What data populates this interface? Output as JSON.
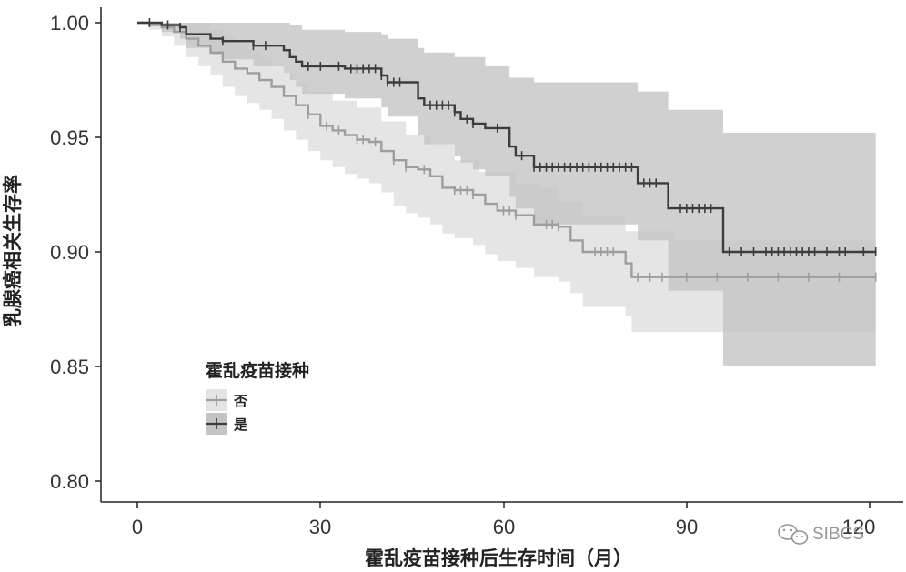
{
  "chart_data": {
    "type": "line",
    "xlabel": "霍乱疫苗接种后生存时间（月）",
    "ylabel": "乳腺癌相关生存率",
    "xlim": [
      0,
      120
    ],
    "ylim": [
      0.8,
      1.0
    ],
    "x_ticks": [
      "0",
      "30",
      "60",
      "90",
      "120"
    ],
    "y_ticks": [
      "1.00",
      "0.95",
      "0.90",
      "0.85",
      "0.80"
    ],
    "grid": false,
    "legend": {
      "title": "霍乱疫苗接种",
      "position": "left-middle"
    },
    "series": [
      {
        "name": "否",
        "color": "#9e9e9e",
        "band_color": "#e4e4e4",
        "steps": [
          [
            0,
            1.0
          ],
          [
            2,
            0.999
          ],
          [
            4,
            0.998
          ],
          [
            6,
            0.996
          ],
          [
            8,
            0.993
          ],
          [
            10,
            0.99
          ],
          [
            12,
            0.987
          ],
          [
            14,
            0.983
          ],
          [
            16,
            0.98
          ],
          [
            18,
            0.978
          ],
          [
            20,
            0.975
          ],
          [
            22,
            0.972
          ],
          [
            24,
            0.968
          ],
          [
            26,
            0.964
          ],
          [
            28,
            0.96
          ],
          [
            30,
            0.955
          ],
          [
            32,
            0.953
          ],
          [
            34,
            0.951
          ],
          [
            36,
            0.949
          ],
          [
            38,
            0.948
          ],
          [
            40,
            0.944
          ],
          [
            42,
            0.94
          ],
          [
            44,
            0.937
          ],
          [
            46,
            0.936
          ],
          [
            48,
            0.933
          ],
          [
            50,
            0.928
          ],
          [
            52,
            0.927
          ],
          [
            55,
            0.925
          ],
          [
            57,
            0.921
          ],
          [
            59,
            0.918
          ],
          [
            62,
            0.916
          ],
          [
            65,
            0.912
          ],
          [
            69,
            0.911
          ],
          [
            71,
            0.905
          ],
          [
            73,
            0.9
          ],
          [
            80,
            0.895
          ],
          [
            81,
            0.889
          ],
          [
            121,
            0.889
          ]
        ],
        "censor_x": [
          28,
          31,
          33,
          36,
          37,
          39,
          42,
          44,
          47,
          52,
          53,
          54,
          55,
          60,
          61,
          62,
          67,
          68,
          69,
          75,
          76,
          77,
          78,
          82,
          84,
          86,
          90,
          95,
          100,
          105,
          110,
          115,
          121
        ],
        "ci_upper": [
          [
            0,
            1.0
          ],
          [
            8,
            1.0
          ],
          [
            12,
            0.997
          ],
          [
            14,
            0.994
          ],
          [
            16,
            0.991
          ],
          [
            18,
            0.988
          ],
          [
            20,
            0.985
          ],
          [
            22,
            0.982
          ],
          [
            24,
            0.978
          ],
          [
            26,
            0.974
          ],
          [
            28,
            0.97
          ],
          [
            32,
            0.966
          ],
          [
            36,
            0.963
          ],
          [
            40,
            0.957
          ],
          [
            44,
            0.951
          ],
          [
            48,
            0.947
          ],
          [
            52,
            0.94
          ],
          [
            56,
            0.935
          ],
          [
            62,
            0.93
          ],
          [
            66,
            0.928
          ],
          [
            69,
            0.922
          ],
          [
            73,
            0.916
          ],
          [
            80,
            0.909
          ],
          [
            88,
            0.905
          ],
          [
            121,
            0.905
          ]
        ],
        "ci_lower": [
          [
            0,
            1.0
          ],
          [
            2,
            0.997
          ],
          [
            4,
            0.994
          ],
          [
            6,
            0.99
          ],
          [
            8,
            0.985
          ],
          [
            10,
            0.981
          ],
          [
            12,
            0.977
          ],
          [
            14,
            0.972
          ],
          [
            16,
            0.968
          ],
          [
            18,
            0.965
          ],
          [
            20,
            0.962
          ],
          [
            22,
            0.958
          ],
          [
            24,
            0.953
          ],
          [
            26,
            0.949
          ],
          [
            28,
            0.944
          ],
          [
            30,
            0.94
          ],
          [
            32,
            0.937
          ],
          [
            34,
            0.934
          ],
          [
            36,
            0.932
          ],
          [
            38,
            0.93
          ],
          [
            40,
            0.926
          ],
          [
            42,
            0.92
          ],
          [
            44,
            0.917
          ],
          [
            46,
            0.915
          ],
          [
            48,
            0.912
          ],
          [
            50,
            0.908
          ],
          [
            52,
            0.906
          ],
          [
            55,
            0.903
          ],
          [
            57,
            0.899
          ],
          [
            59,
            0.896
          ],
          [
            62,
            0.893
          ],
          [
            65,
            0.889
          ],
          [
            69,
            0.887
          ],
          [
            71,
            0.882
          ],
          [
            73,
            0.876
          ],
          [
            80,
            0.872
          ],
          [
            81,
            0.865
          ],
          [
            121,
            0.865
          ]
        ]
      },
      {
        "name": "是",
        "color": "#3c3c3c",
        "band_color": "#c4c4c4",
        "steps": [
          [
            0,
            1.0
          ],
          [
            4,
            0.999
          ],
          [
            7,
            0.998
          ],
          [
            8,
            0.995
          ],
          [
            12,
            0.993
          ],
          [
            14,
            0.992
          ],
          [
            19,
            0.99
          ],
          [
            24,
            0.988
          ],
          [
            25,
            0.985
          ],
          [
            26,
            0.983
          ],
          [
            27,
            0.981
          ],
          [
            34,
            0.98
          ],
          [
            40,
            0.977
          ],
          [
            41,
            0.974
          ],
          [
            46,
            0.967
          ],
          [
            47,
            0.964
          ],
          [
            52,
            0.961
          ],
          [
            53,
            0.958
          ],
          [
            55,
            0.956
          ],
          [
            57,
            0.954
          ],
          [
            61,
            0.946
          ],
          [
            62,
            0.942
          ],
          [
            65,
            0.937
          ],
          [
            82,
            0.93
          ],
          [
            87,
            0.919
          ],
          [
            96,
            0.9
          ],
          [
            121,
            0.9
          ]
        ],
        "censor_x": [
          2,
          5,
          7,
          14,
          19,
          21,
          28,
          30,
          33,
          35,
          36,
          37,
          38,
          39,
          40,
          41,
          42,
          43,
          48,
          49,
          50,
          51,
          52,
          54,
          55,
          59,
          63,
          65,
          66,
          67,
          68,
          69,
          70,
          71,
          72,
          73,
          74,
          75,
          76,
          77,
          78,
          79,
          80,
          81,
          83,
          84,
          85,
          89,
          90,
          91,
          92,
          93,
          94,
          97,
          99,
          101,
          103,
          104,
          105,
          106,
          107,
          108,
          109,
          110,
          111,
          113,
          115,
          116,
          119,
          121
        ],
        "ci_upper": [
          [
            0,
            1.0
          ],
          [
            18,
            1.0
          ],
          [
            25,
            0.999
          ],
          [
            27,
            0.997
          ],
          [
            34,
            0.996
          ],
          [
            40,
            0.995
          ],
          [
            41,
            0.993
          ],
          [
            46,
            0.989
          ],
          [
            47,
            0.987
          ],
          [
            52,
            0.985
          ],
          [
            57,
            0.981
          ],
          [
            61,
            0.976
          ],
          [
            65,
            0.974
          ],
          [
            82,
            0.97
          ],
          [
            87,
            0.962
          ],
          [
            96,
            0.952
          ],
          [
            121,
            0.952
          ]
        ],
        "ci_lower": [
          [
            0,
            1.0
          ],
          [
            4,
            0.996
          ],
          [
            7,
            0.993
          ],
          [
            8,
            0.989
          ],
          [
            12,
            0.986
          ],
          [
            14,
            0.984
          ],
          [
            19,
            0.981
          ],
          [
            24,
            0.978
          ],
          [
            25,
            0.975
          ],
          [
            26,
            0.972
          ],
          [
            27,
            0.969
          ],
          [
            34,
            0.967
          ],
          [
            40,
            0.963
          ],
          [
            41,
            0.959
          ],
          [
            46,
            0.951
          ],
          [
            47,
            0.947
          ],
          [
            52,
            0.942
          ],
          [
            53,
            0.939
          ],
          [
            55,
            0.936
          ],
          [
            57,
            0.933
          ],
          [
            61,
            0.924
          ],
          [
            62,
            0.919
          ],
          [
            65,
            0.912
          ],
          [
            82,
            0.905
          ],
          [
            87,
            0.883
          ],
          [
            96,
            0.85
          ],
          [
            121,
            0.85
          ]
        ]
      }
    ]
  },
  "watermark": {
    "text": "SIBCS",
    "icon": "wechat-icon"
  }
}
